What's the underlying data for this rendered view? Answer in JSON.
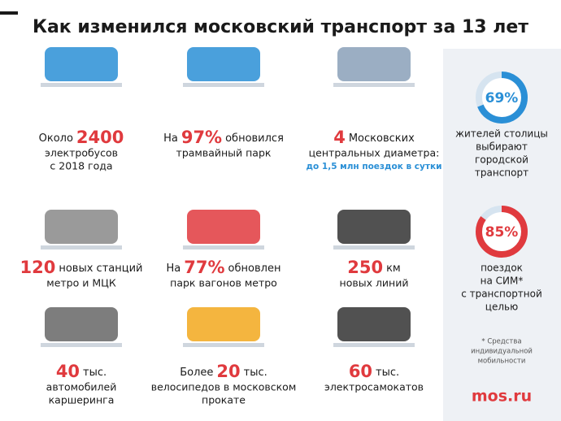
{
  "title": "Как изменился московский транспорт за 13 лет",
  "items": [
    {
      "prefix": "Около",
      "number": "2400",
      "lines": [
        "электробусов",
        "с 2018 года"
      ]
    },
    {
      "prefix": "На",
      "number": "97%",
      "suffix": "обновился",
      "lines": [
        "трамвайный парк"
      ]
    },
    {
      "number": "4",
      "suffix": "Московских",
      "lines": [
        "центральных диаметра:"
      ],
      "note": "до 1,5 млн поездок в сутки"
    },
    {
      "number": "120",
      "suffix": "новых станций",
      "lines": [
        "метро и МЦК"
      ]
    },
    {
      "prefix": "На",
      "number": "77%",
      "suffix": "обновлен",
      "lines": [
        "парк вагонов метро"
      ]
    },
    {
      "number": "250",
      "suffix": "км",
      "lines": [
        "новых линий"
      ]
    },
    {
      "number": "40",
      "suffix": "тыс.",
      "lines": [
        "автомобилей",
        "каршеринга"
      ]
    },
    {
      "prefix": "Более",
      "number": "20",
      "suffix": "тыс.",
      "lines": [
        "велосипедов в московском",
        "прокате"
      ]
    },
    {
      "number": "60",
      "suffix": "тыс.",
      "lines": [
        "электросамокатов"
      ]
    }
  ],
  "stats": [
    {
      "value": 69,
      "label": "69%",
      "color": "#2a8fd6",
      "lines": [
        "жителей столицы",
        "выбирают",
        "городской",
        "транспорт"
      ]
    },
    {
      "value": 85,
      "label": "85%",
      "color": "#e03a3e",
      "lines": [
        "поездок",
        "на СИМ*",
        "с транспортной",
        "целью"
      ]
    }
  ],
  "footnote": [
    "* Средства",
    "индивидуальной",
    "мобильности"
  ],
  "brand": "mos.ru"
}
